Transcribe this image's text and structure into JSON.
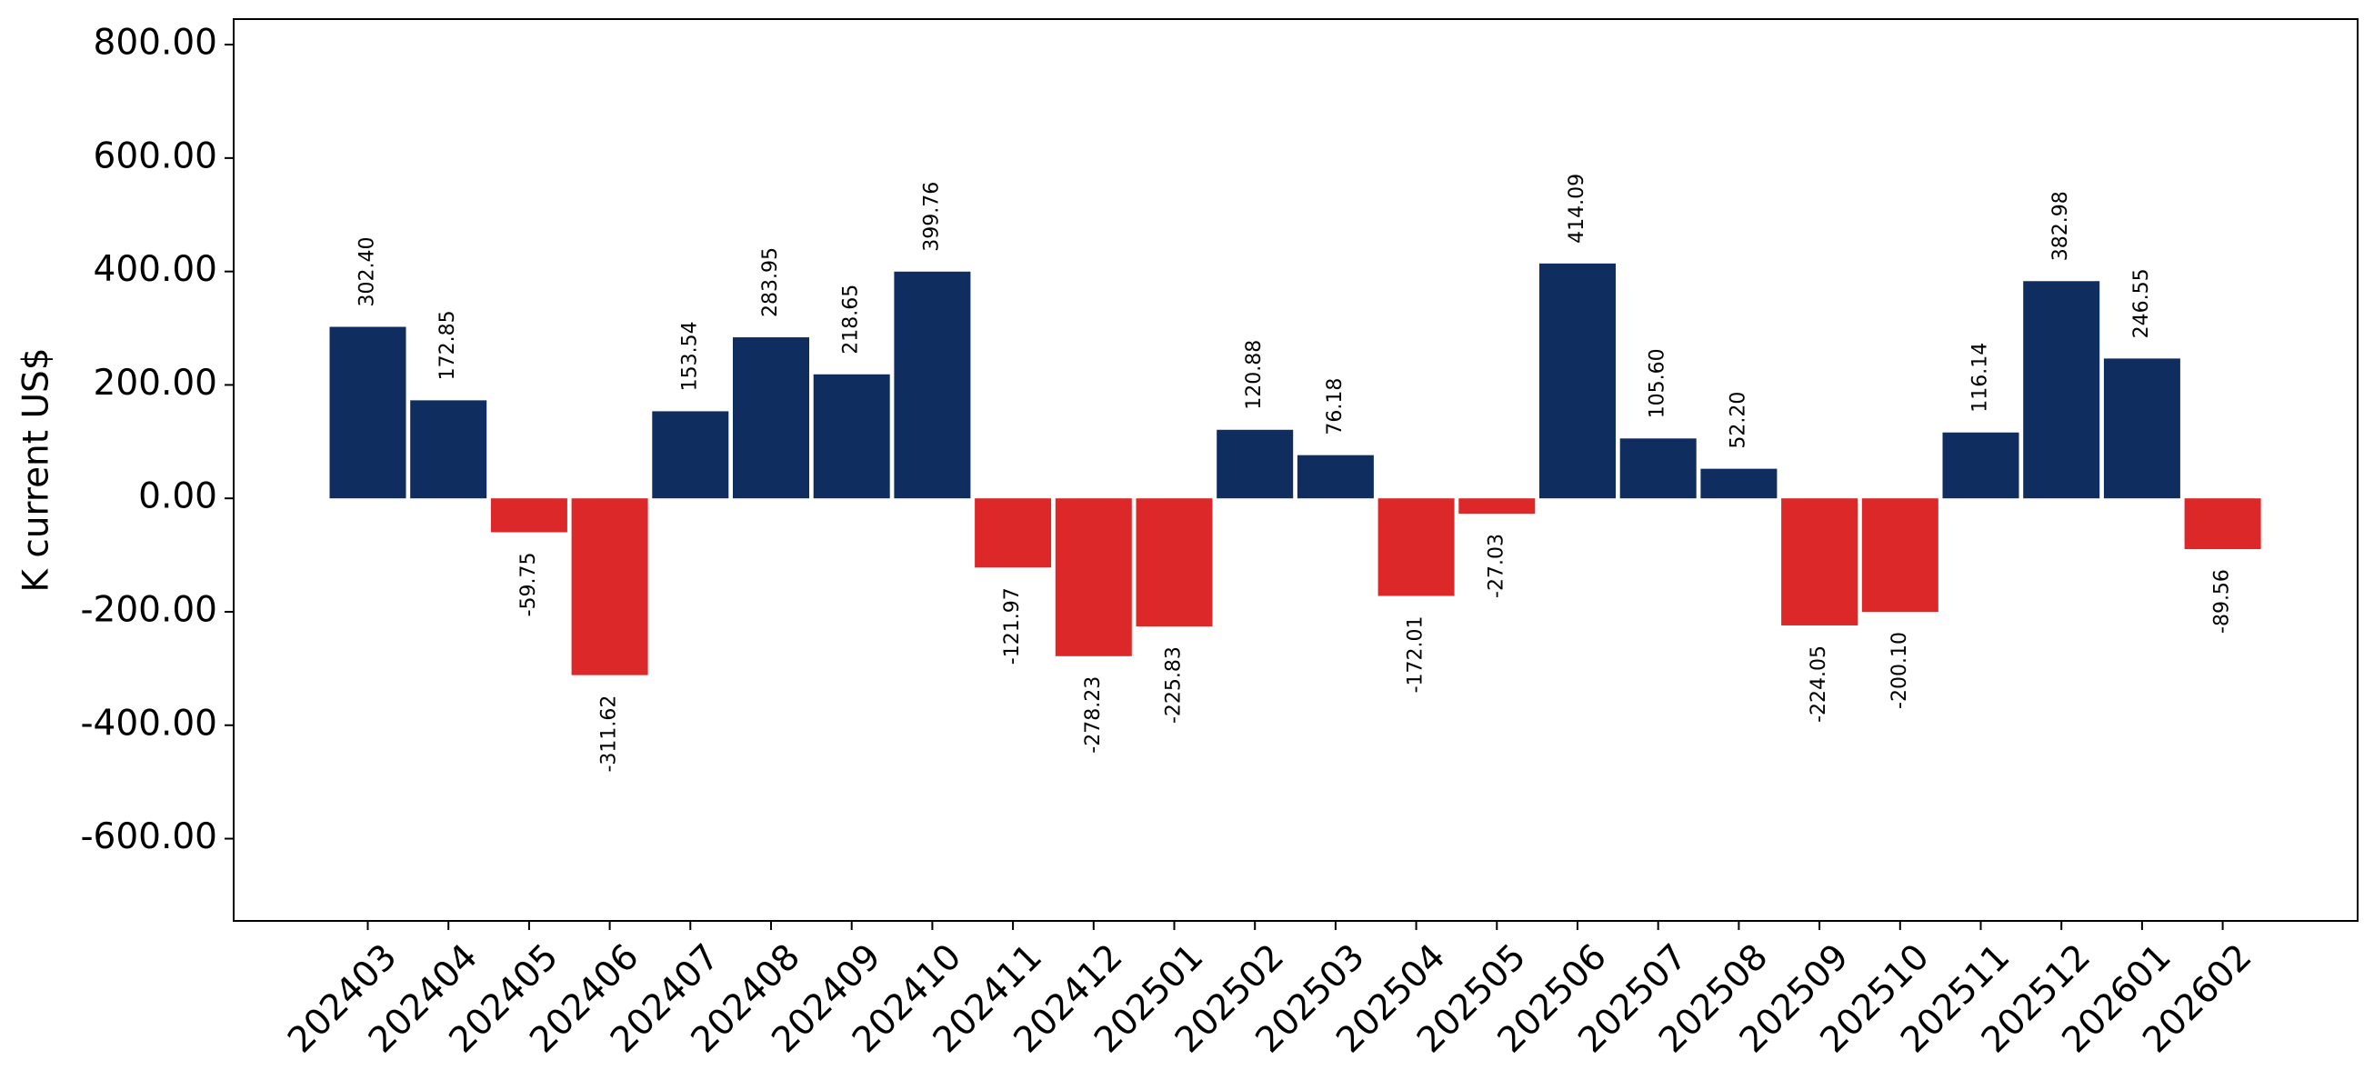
{
  "chart_data": {
    "type": "bar",
    "title": "",
    "xlabel": "",
    "ylabel": "K current US$",
    "ylim": [
      -745,
      845
    ],
    "yticks": [
      800,
      600,
      400,
      200,
      0,
      -200,
      -400,
      -600
    ],
    "ytick_labels": [
      "800.00",
      "600.00",
      "400.00",
      "200.00",
      "0.00",
      "-200.00",
      "-400.00",
      "-600.00"
    ],
    "grid": false,
    "legend": "none",
    "categories": [
      "202403",
      "202404",
      "202405",
      "202406",
      "202407",
      "202408",
      "202409",
      "202410",
      "202411",
      "202412",
      "202501",
      "202502",
      "202503",
      "202504",
      "202505",
      "202506",
      "202507",
      "202508",
      "202509",
      "202510",
      "202511",
      "202512",
      "202601",
      "202602"
    ],
    "values": [
      302.4,
      172.85,
      -59.75,
      -311.62,
      153.54,
      283.95,
      218.65,
      399.76,
      -121.97,
      -278.23,
      -225.83,
      120.88,
      76.18,
      -172.01,
      -27.03,
      414.09,
      105.6,
      52.2,
      -224.05,
      -200.1,
      116.14,
      382.98,
      246.55,
      -89.56
    ],
    "value_labels": [
      "302.40",
      "172.85",
      "-59.75",
      "-311.62",
      "153.54",
      "283.95",
      "218.65",
      "399.76",
      "-121.97",
      "-278.23",
      "-225.83",
      "120.88",
      "76.18",
      "-172.01",
      "-27.03",
      "414.09",
      "105.60",
      "52.20",
      "-224.05",
      "-200.10",
      "116.14",
      "382.98",
      "246.55",
      "-89.56"
    ],
    "colors": {
      "positive": "#0f2d5e",
      "negative": "#dc2828"
    }
  }
}
